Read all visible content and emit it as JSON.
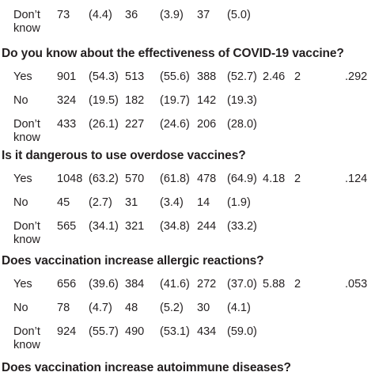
{
  "top_row": {
    "label_line1": "Don’t",
    "label_line2": "know",
    "values": [
      "73",
      "(4.4)",
      "36",
      "(3.9)",
      "37",
      "(5.0)",
      "",
      "",
      ""
    ]
  },
  "sections": [
    {
      "question": "Do you know about the effectiveness of COVID-19 vaccine?",
      "rows": [
        {
          "label": "Yes",
          "label2": "",
          "values": [
            "901",
            "(54.3)",
            "513",
            "(55.6)",
            "388",
            "(52.7)",
            "2.46",
            "2",
            ".292"
          ]
        },
        {
          "label": "No",
          "label2": "",
          "values": [
            "324",
            "(19.5)",
            "182",
            "(19.7)",
            "142",
            "(19.3)",
            "",
            "",
            ""
          ]
        },
        {
          "label": "Don’t",
          "label2": "know",
          "values": [
            "433",
            "(26.1)",
            "227",
            "(24.6)",
            "206",
            "(28.0)",
            "",
            "",
            ""
          ]
        }
      ]
    },
    {
      "question": "Is it dangerous to use overdose vaccines?",
      "rows": [
        {
          "label": "Yes",
          "label2": "",
          "values": [
            "1048",
            "(63.2)",
            "570",
            "(61.8)",
            "478",
            "(64.9)",
            "4.18",
            "2",
            ".124"
          ]
        },
        {
          "label": "No",
          "label2": "",
          "values": [
            "45",
            "(2.7)",
            "31",
            "(3.4)",
            "14",
            "(1.9)",
            "",
            "",
            ""
          ]
        },
        {
          "label": "Don’t",
          "label2": "know",
          "values": [
            "565",
            "(34.1)",
            "321",
            "(34.8)",
            "244",
            "(33.2)",
            "",
            "",
            ""
          ]
        }
      ]
    },
    {
      "question": "Does vaccination increase allergic reactions?",
      "rows": [
        {
          "label": "Yes",
          "label2": "",
          "values": [
            "656",
            "(39.6)",
            "384",
            "(41.6)",
            "272",
            "(37.0)",
            "5.88",
            "2",
            ".053"
          ]
        },
        {
          "label": "No",
          "label2": "",
          "values": [
            "78",
            "(4.7)",
            "48",
            "(5.2)",
            "30",
            "(4.1)",
            "",
            "",
            ""
          ]
        },
        {
          "label": "Don’t",
          "label2": "know",
          "values": [
            "924",
            "(55.7)",
            "490",
            "(53.1)",
            "434",
            "(59.0)",
            "",
            "",
            ""
          ]
        }
      ]
    },
    {
      "question": "Does vaccination increase autoimmune diseases?",
      "rows": []
    }
  ]
}
